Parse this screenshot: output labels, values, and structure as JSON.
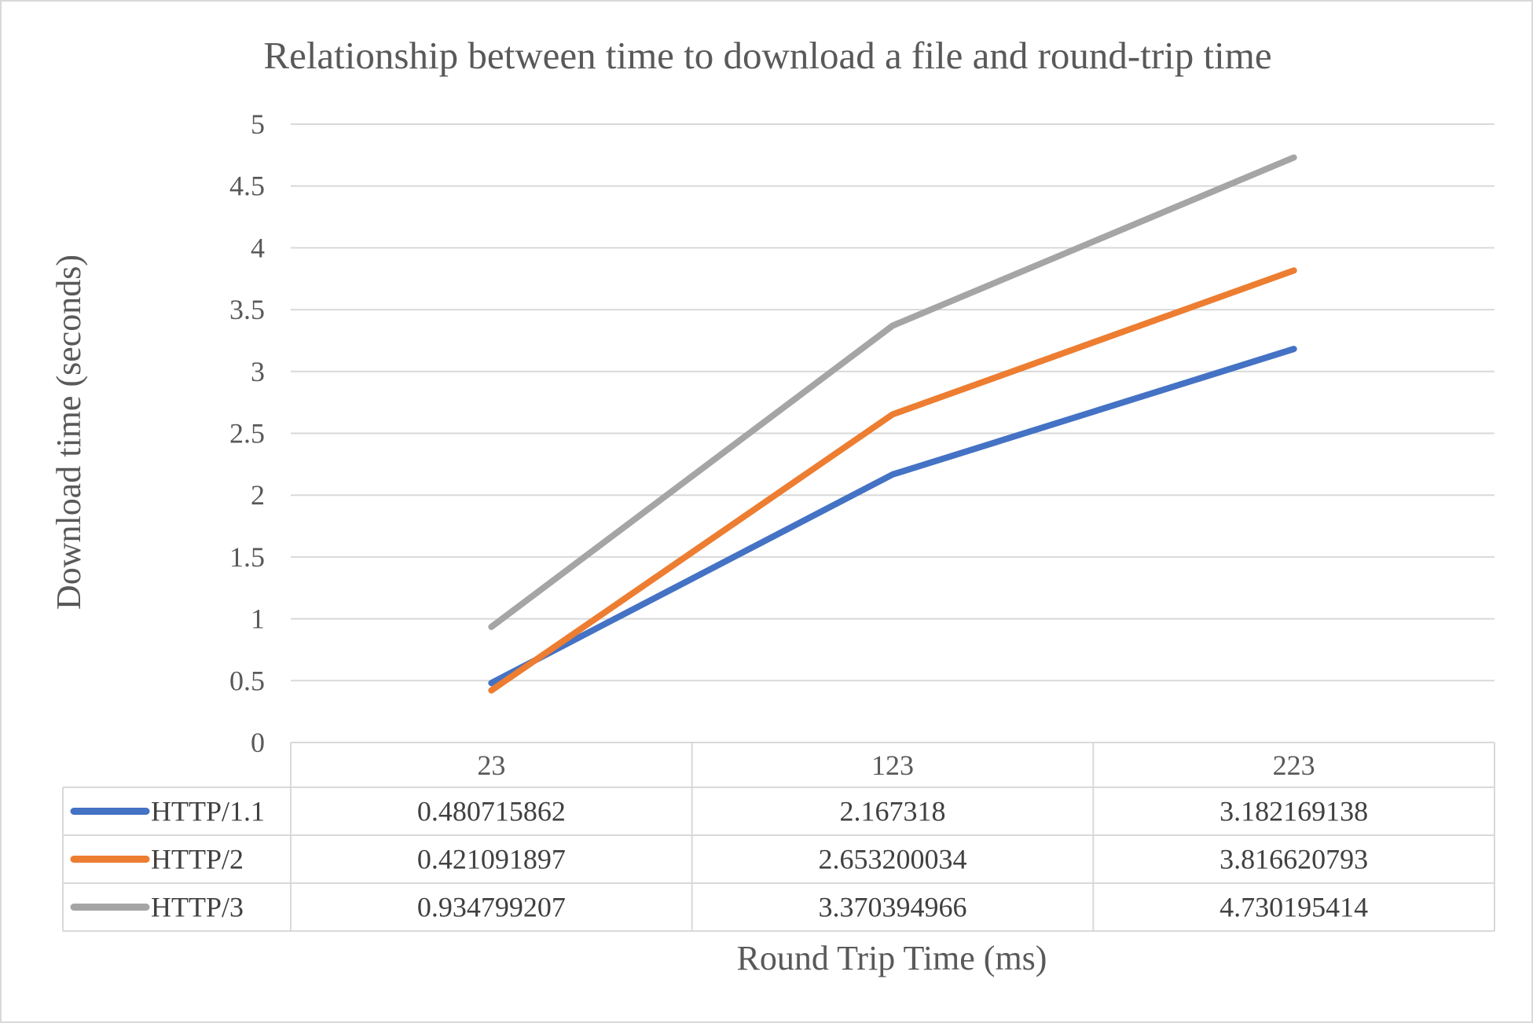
{
  "chart_data": {
    "type": "line",
    "title": "Relationship between time to download a file and round-trip time",
    "xlabel": "Round Trip Time (ms)",
    "ylabel": "Download time (seconds)",
    "ylim": [
      0,
      5
    ],
    "y_ticks": [
      "0",
      "0.5",
      "1",
      "1.5",
      "2",
      "2.5",
      "3",
      "3.5",
      "4",
      "4.5",
      "5"
    ],
    "grid": true,
    "legend_placement": "bottom data table",
    "categories": [
      "23",
      "123",
      "223"
    ],
    "series": [
      {
        "name": "HTTP/1.1",
        "color": "#4472C4",
        "values": [
          0.480715862,
          2.167318,
          3.182169138
        ],
        "labels": [
          "0.480715862",
          "2.167318",
          "3.182169138"
        ]
      },
      {
        "name": "HTTP/2",
        "color": "#ED7D31",
        "values": [
          0.421091897,
          2.653200034,
          3.816620793
        ],
        "labels": [
          "0.421091897",
          "2.653200034",
          "3.816620793"
        ]
      },
      {
        "name": "HTTP/3",
        "color": "#A5A5A5",
        "values": [
          0.934799207,
          3.370394966,
          4.730195414
        ],
        "labels": [
          "0.934799207",
          "3.370394966",
          "4.730195414"
        ]
      }
    ]
  }
}
